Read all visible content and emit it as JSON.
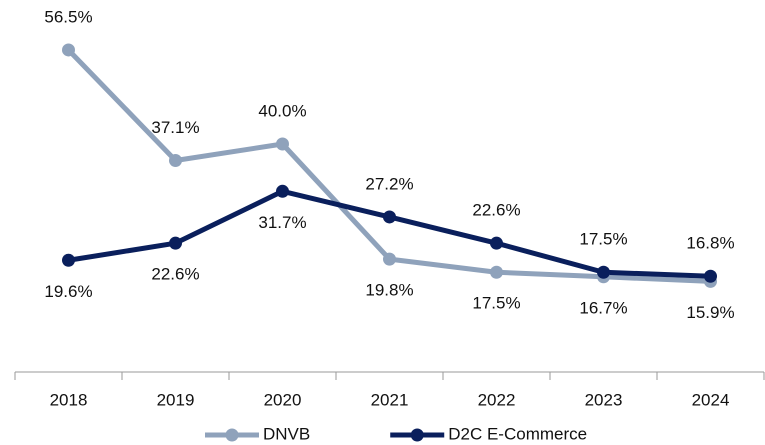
{
  "chart_data": {
    "type": "line",
    "categories": [
      "2018",
      "2019",
      "2020",
      "2021",
      "2022",
      "2023",
      "2024"
    ],
    "series": [
      {
        "name": "DNVB",
        "color": "#8fa2bb",
        "values": [
          56.5,
          37.1,
          40.0,
          19.8,
          17.5,
          16.7,
          15.9
        ],
        "value_labels": [
          "56.5%",
          "37.1%",
          "40.0%",
          "19.8%",
          "17.5%",
          "16.7%",
          "15.9%"
        ]
      },
      {
        "name": "D2C E-Commerce",
        "color": "#0a1f5c",
        "values": [
          19.6,
          22.6,
          31.7,
          27.2,
          22.6,
          17.5,
          16.8
        ],
        "value_labels": [
          "19.6%",
          "22.6%",
          "31.7%",
          "27.2%",
          "22.6%",
          "17.5%",
          "16.8%"
        ]
      }
    ],
    "ylim": [
      0,
      60
    ],
    "legend": "bottom"
  }
}
